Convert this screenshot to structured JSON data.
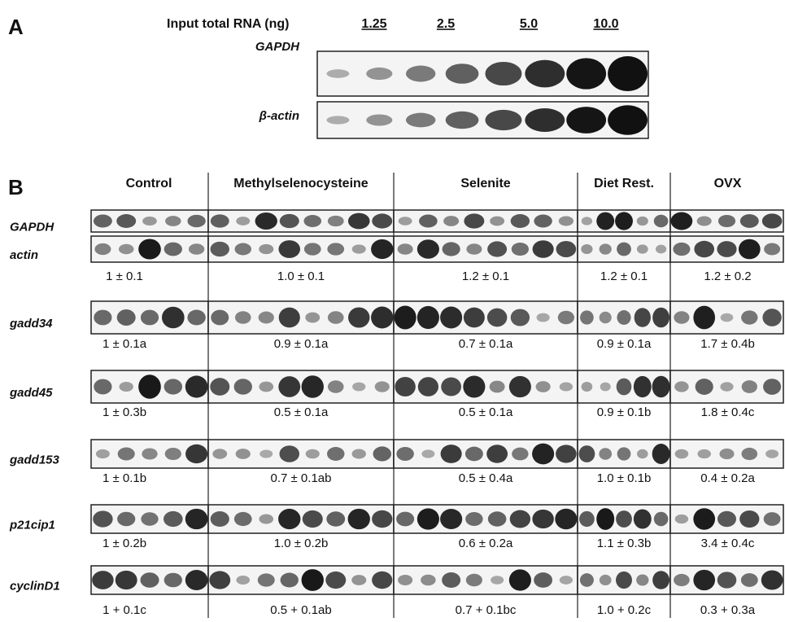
{
  "panel_a": {
    "label": "A",
    "input_label": "Input total RNA (ng)",
    "amounts": [
      "1.25",
      "2.5",
      "5.0",
      "10.0"
    ],
    "blots": [
      "GAPDH",
      "β-actin"
    ]
  },
  "panel_b": {
    "label": "B",
    "groups": [
      "Control",
      "Methylselenocysteine",
      "Selenite",
      "Diet Rest.",
      "OVX"
    ],
    "rows": [
      {
        "genes": [
          "GAPDH",
          "actin"
        ],
        "values": [
          "1 ± 0.1",
          "1.0 ± 0.1",
          "1.2 ± 0.1",
          "1.2 ± 0.1",
          "1.2 ± 0.2"
        ]
      },
      {
        "genes": [
          "gadd34"
        ],
        "values": [
          "1 ± 0.1a",
          "0.9 ± 0.1a",
          "0.7 ± 0.1a",
          "0.9 ± 0.1a",
          "1.7 ± 0.4b"
        ]
      },
      {
        "genes": [
          "gadd45"
        ],
        "values": [
          "1 ± 0.3b",
          "0.5 ± 0.1a",
          "0.5 ± 0.1a",
          "0.9 ± 0.1b",
          "1.8 ± 0.4c"
        ]
      },
      {
        "genes": [
          "gadd153"
        ],
        "values": [
          "1 ± 0.1b",
          "0.7 ± 0.1ab",
          "0.5 ± 0.4a",
          "1.0 ± 0.1b",
          "0.4 ± 0.2a"
        ]
      },
      {
        "genes": [
          "p21cip1"
        ],
        "values": [
          "1 ± 0.2b",
          "1.0 ± 0.2b",
          "0.6 ± 0.2a",
          "1.1 ± 0.3b",
          "3.4 ± 0.4c"
        ]
      },
      {
        "genes": [
          "cyclinD1"
        ],
        "values": [
          "1 + 0.1c",
          "0.5 + 0.1ab",
          "0.7 + 0.1bc",
          "1.0 + 0.2c",
          "0.3 + 0.3a"
        ]
      }
    ]
  }
}
